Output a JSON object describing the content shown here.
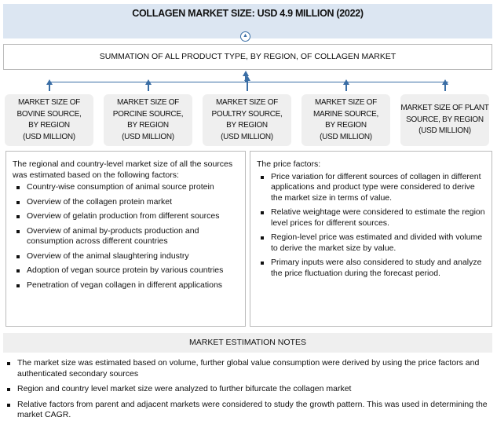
{
  "title": "COLLAGEN MARKET SIZE: USD 4.9 MILLION (2022)",
  "summation": "SUMMATION OF ALL PRODUCT TYPE, BY REGION, OF COLLAGEN MARKET",
  "sources": [
    "MARKET SIZE OF\nBOVINE SOURCE,\nBY REGION\n(USD MILLION)",
    "MARKET SIZE OF\nPORCINE SOURCE,\nBY REGION\n(USD MILLION)",
    "MARKET SIZE OF\nPOULTRY SOURCE,\nBY REGION\n(USD MILLION)",
    "MARKET SIZE OF\nMARINE SOURCE,\nBY REGION\n(USD MILLION)",
    "MARKET SIZE OF PLANT\nSOURCE, BY REGION\n(USD MILLION)"
  ],
  "left_panel": {
    "intro": "The regional and country-level market size of all the sources was estimated based on the following factors:",
    "items": [
      "Country-wise consumption of animal source protein",
      "Overview of the collagen protein market",
      "Overview of gelatin production from different sources",
      "Overview of animal by-products production and consumption across different countries",
      "Overview of the animal slaughtering industry",
      "Adoption of vegan source protein by various countries",
      "Penetration of vegan collagen in different applications"
    ]
  },
  "right_panel": {
    "intro": "The price factors:",
    "items": [
      "Price variation for different sources of collagen in different applications and product type were considered to derive the market size in terms of value.",
      "Relative weightage were considered to estimate the region level prices for different sources.",
      "Region-level price was estimated and divided with volume to derive the market size by value.",
      "Primary inputs were also considered to study and analyze the price fluctuation during the forecast period."
    ]
  },
  "notes": {
    "title": "MARKET ESTIMATION NOTES",
    "items": [
      "The market size was estimated based on volume, further global value consumption were derived by using the price factors and authenticated secondary sources",
      "Region and country level market size were analyzed to further bifurcate the collagen market",
      "Relative factors from parent and adjacent markets were considered to study the growth pattern. This was used in determining the market CAGR."
    ]
  }
}
